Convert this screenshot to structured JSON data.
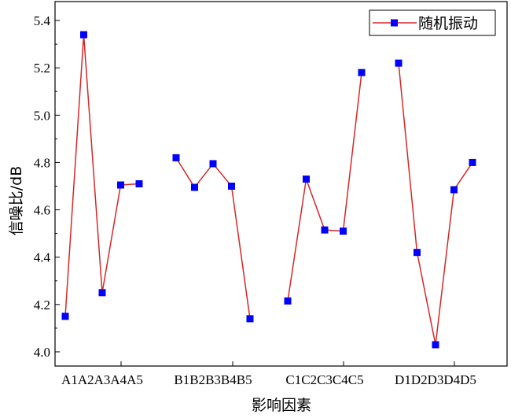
{
  "chart_data": {
    "type": "line",
    "title": "",
    "xlabel": "影响因素",
    "ylabel": "信噪比/dB",
    "ylim": [
      3.94,
      5.48
    ],
    "yticks": [
      "4.0",
      "4.2",
      "4.4",
      "4.6",
      "4.8",
      "5.0",
      "5.2",
      "5.4"
    ],
    "grid": false,
    "legend_position": "top-right",
    "categories": [
      "A1",
      "A2",
      "A3",
      "A4",
      "A5",
      "B1",
      "B2",
      "B3",
      "B4",
      "B5",
      "C1",
      "C2",
      "C3",
      "C4",
      "C5",
      "D1",
      "D2",
      "D3",
      "D4",
      "D5"
    ],
    "group_labels": [
      "A1A2A3A4A5",
      "B1B2B3B4B5",
      "C1C2C3C4C5",
      "D1D2D3D4D5"
    ],
    "series": [
      {
        "name": "随机振动",
        "color": "#d62728",
        "marker_color": "#0000ff",
        "groups": [
          [
            4.15,
            5.34,
            4.25,
            4.705,
            4.71
          ],
          [
            4.82,
            4.695,
            4.795,
            4.7,
            4.14
          ],
          [
            4.215,
            4.73,
            4.515,
            4.51,
            5.18
          ],
          [
            5.22,
            4.42,
            4.03,
            4.685,
            4.8
          ]
        ]
      }
    ]
  }
}
